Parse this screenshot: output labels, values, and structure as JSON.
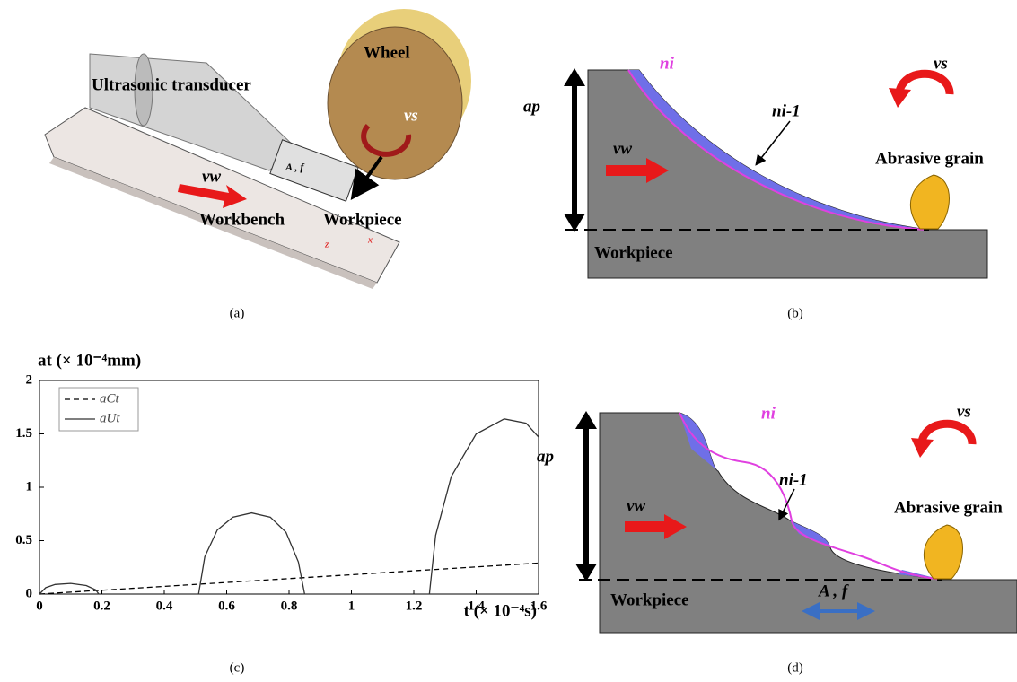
{
  "panel_a": {
    "caption": "(a)",
    "wheel": "Wheel",
    "vs": "vs",
    "transducer": "Ultrasonic transducer",
    "vw": "vw",
    "workbench": "Workbench",
    "workpiece": "Workpiece",
    "af": "A , f",
    "z": "z",
    "x": "x"
  },
  "panel_b": {
    "caption": "(b)",
    "ap": "ap",
    "ni": "ni",
    "ni1": "ni-1",
    "vs": "vs",
    "vw": "vw",
    "grain": "Abrasive grain",
    "workpiece": "Workpiece"
  },
  "panel_d": {
    "caption": "(d)",
    "ap": "ap",
    "ni": "ni",
    "ni1": "ni-1",
    "vs": "vs",
    "vw": "vw",
    "grain": "Abrasive grain",
    "workpiece": "Workpiece",
    "af": "A , f"
  },
  "chart_data": {
    "type": "line",
    "caption": "(c)",
    "y_label": "at (× 10⁻⁴mm)",
    "x_label": "t (× 10⁻⁴s)",
    "xlim": [
      0,
      1.6
    ],
    "ylim": [
      0,
      2
    ],
    "xticks": [
      0,
      0.2,
      0.4,
      0.6,
      0.8,
      1,
      1.2,
      1.4,
      1.6
    ],
    "yticks": [
      0,
      0.5,
      1,
      1.5,
      2
    ],
    "legend": "upper left",
    "x": [
      0,
      0.02,
      0.05,
      0.1,
      0.15,
      0.18,
      0.19,
      0.3,
      0.51,
      0.53,
      0.57,
      0.62,
      0.68,
      0.74,
      0.79,
      0.83,
      0.85,
      1.0,
      1.25,
      1.27,
      1.32,
      1.4,
      1.49,
      1.56,
      1.6
    ],
    "series": [
      {
        "name": "aCt",
        "color": "#000000",
        "dash": true,
        "values": [
          0,
          0.004,
          0.009,
          0.018,
          0.027,
          0.033,
          0.034,
          0.054,
          0.092,
          0.096,
          0.103,
          0.112,
          0.123,
          0.134,
          0.143,
          0.15,
          0.154,
          0.181,
          0.227,
          0.23,
          0.239,
          0.254,
          0.27,
          0.283,
          0.29
        ]
      },
      {
        "name": "aUt",
        "color": "#333333",
        "dash": false,
        "values": [
          0,
          0.06,
          0.09,
          0.1,
          0.08,
          0.04,
          0,
          null,
          0,
          0.35,
          0.6,
          0.72,
          0.76,
          0.72,
          0.58,
          0.3,
          0,
          null,
          0,
          0.55,
          1.1,
          1.5,
          1.64,
          1.6,
          1.47
        ]
      }
    ]
  }
}
